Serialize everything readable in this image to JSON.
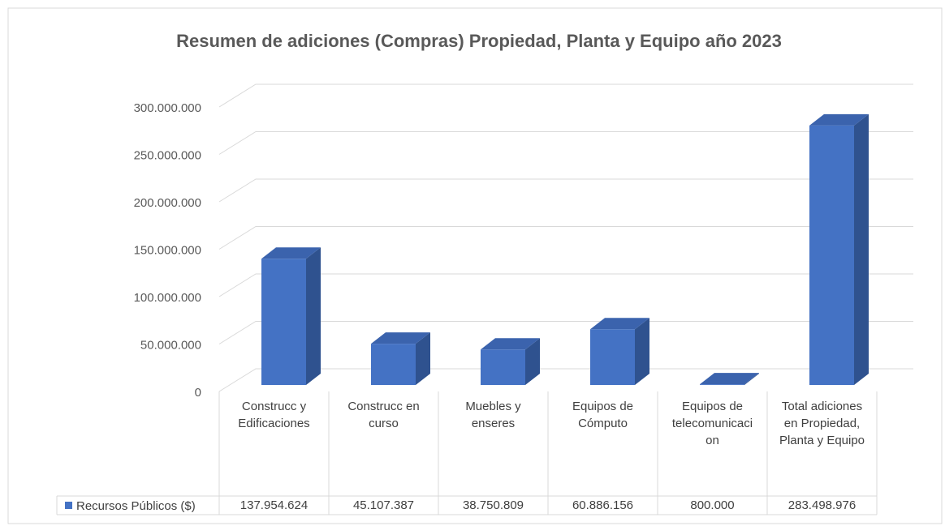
{
  "chart_data": {
    "type": "bar3d",
    "title": "Resumen de adiciones (Compras) Propiedad, Planta y Equipo año 2023",
    "categories": [
      "Construcc y Edificaciones",
      "Construcc en curso",
      "Muebles y enseres",
      "Equipos de Cómputo",
      "Equipos de telecomunicacion",
      "Total adiciones en Propiedad, Planta y Equipo"
    ],
    "series": [
      {
        "name": "Recursos Públicos ($)",
        "color": "#4472c4",
        "values": [
          137954624,
          45107387,
          38750809,
          60886156,
          800000,
          283498976
        ],
        "value_labels": [
          "137.954.624",
          "45.107.387",
          "38.750.809",
          "60.886.156",
          "800.000",
          "283.498.976"
        ]
      }
    ],
    "ylim": [
      0,
      300000000
    ],
    "yticks": [
      0,
      {
        "value": 50000000,
        "label": "50.000.000"
      },
      {
        "value": 100000000,
        "label": "100.000.000"
      },
      {
        "value": 150000000,
        "label": "150.000.000"
      },
      {
        "value": 200000000,
        "label": "200.000.000"
      },
      {
        "value": 250000000,
        "label": "250.000.000"
      },
      {
        "value": 300000000,
        "label": "300.000.000"
      }
    ],
    "grid": true
  }
}
